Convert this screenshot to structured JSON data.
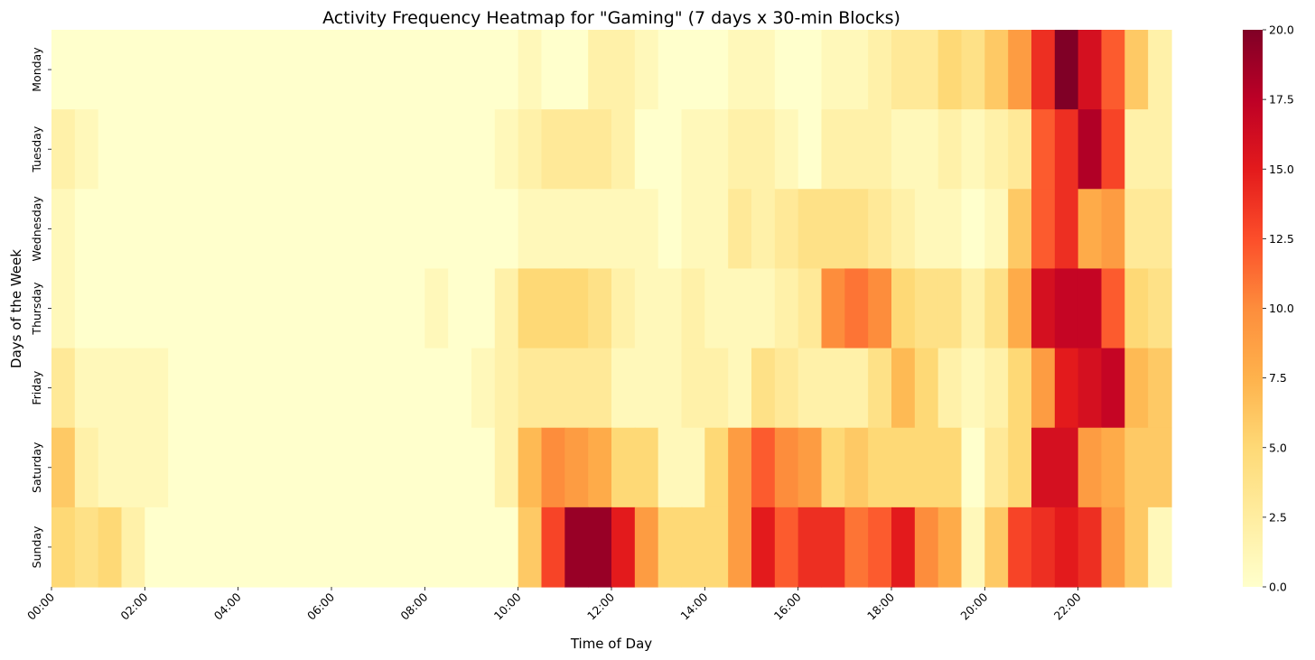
{
  "chart_data": {
    "type": "heatmap",
    "title": "Activity Frequency Heatmap for \"Gaming\" (7 days x 30-min Blocks)",
    "xlabel": "Time of Day",
    "ylabel": "Days of the Week",
    "colormap": "YlOrRd",
    "color_stops": [
      "#ffffcc",
      "#ffeda0",
      "#fed976",
      "#feb24c",
      "#fd8d3c",
      "#fc4e2a",
      "#e31a1c",
      "#bd0026",
      "#800026"
    ],
    "vmin": 0,
    "vmax": 20,
    "colorbar_ticks": [
      "0.0",
      "2.5",
      "5.0",
      "7.5",
      "10.0",
      "12.5",
      "15.0",
      "17.5",
      "20.0"
    ],
    "x_tick_labels": [
      "00:00",
      "02:00",
      "04:00",
      "06:00",
      "08:00",
      "10:00",
      "12:00",
      "14:00",
      "16:00",
      "18:00",
      "20:00",
      "22:00"
    ],
    "rows": [
      "Monday",
      "Tuesday",
      "Wednesday",
      "Thursday",
      "Friday",
      "Saturday",
      "Sunday"
    ],
    "values": [
      [
        0,
        0,
        0,
        0,
        0,
        0,
        0,
        0,
        0,
        0,
        0,
        0,
        0,
        0,
        0,
        0,
        0,
        0,
        0,
        0,
        1,
        0,
        0,
        2,
        2,
        1,
        0,
        0,
        0,
        1,
        1,
        0,
        0,
        1,
        1,
        2,
        3,
        3,
        5,
        4,
        6,
        9,
        14,
        20,
        16,
        12,
        6,
        2
      ],
      [
        2,
        1,
        0,
        0,
        0,
        0,
        0,
        0,
        0,
        0,
        0,
        0,
        0,
        0,
        0,
        0,
        0,
        0,
        0,
        1,
        2,
        3,
        3,
        3,
        2,
        0,
        0,
        1,
        1,
        2,
        2,
        1,
        0,
        2,
        2,
        2,
        1,
        1,
        2,
        1,
        2,
        3,
        12,
        14,
        18,
        13,
        2,
        2
      ],
      [
        1,
        0,
        0,
        0,
        0,
        0,
        0,
        0,
        0,
        0,
        0,
        0,
        0,
        0,
        0,
        0,
        0,
        0,
        0,
        0,
        1,
        1,
        1,
        1,
        1,
        1,
        0,
        1,
        1,
        3,
        2,
        3,
        4,
        4,
        4,
        3,
        2,
        1,
        1,
        0,
        1,
        6,
        12,
        14,
        8,
        9,
        3,
        3
      ],
      [
        1,
        0,
        0,
        0,
        0,
        0,
        0,
        0,
        0,
        0,
        0,
        0,
        0,
        0,
        0,
        0,
        1,
        0,
        0,
        2,
        5,
        5,
        5,
        4,
        2,
        1,
        1,
        2,
        1,
        1,
        1,
        2,
        3,
        10,
        11,
        10,
        5,
        4,
        4,
        2,
        4,
        8,
        16,
        17,
        17,
        12,
        5,
        4
      ],
      [
        3,
        1,
        1,
        1,
        1,
        0,
        0,
        0,
        0,
        0,
        0,
        0,
        0,
        0,
        0,
        0,
        0,
        0,
        1,
        2,
        3,
        3,
        3,
        3,
        1,
        1,
        1,
        2,
        2,
        1,
        4,
        3,
        2,
        2,
        2,
        4,
        7,
        5,
        2,
        1,
        2,
        5,
        9,
        15,
        16,
        17,
        7,
        6
      ],
      [
        6,
        2,
        1,
        1,
        1,
        0,
        0,
        0,
        0,
        0,
        0,
        0,
        0,
        0,
        0,
        0,
        0,
        0,
        0,
        2,
        7,
        10,
        9,
        8,
        5,
        5,
        1,
        1,
        5,
        9,
        12,
        10,
        9,
        5,
        6,
        5,
        5,
        5,
        5,
        0,
        3,
        5,
        16,
        16,
        9,
        8,
        6,
        6
      ],
      [
        5,
        4,
        5,
        2,
        0,
        0,
        0,
        0,
        0,
        0,
        0,
        0,
        0,
        0,
        0,
        0,
        0,
        0,
        0,
        0,
        6,
        13,
        19,
        19,
        15,
        9,
        5,
        5,
        5,
        9,
        15,
        12,
        14,
        14,
        11,
        12,
        15,
        10,
        8,
        1,
        6,
        13,
        14,
        15,
        14,
        9,
        6,
        1
      ]
    ]
  }
}
